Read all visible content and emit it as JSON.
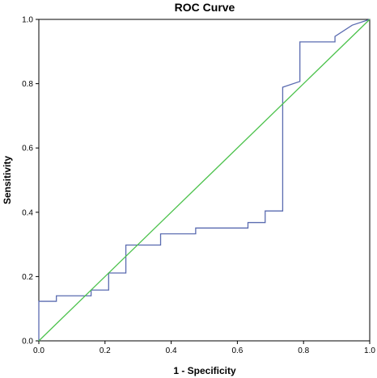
{
  "chart_data": {
    "type": "line",
    "title": "ROC Curve",
    "xlabel": "1 - Specificity",
    "ylabel": "Sensitivity",
    "xlim": [
      0,
      1
    ],
    "ylim": [
      0,
      1
    ],
    "x_ticks": [
      "0.0",
      "0.2",
      "0.4",
      "0.6",
      "0.8",
      "1.0"
    ],
    "y_ticks": [
      "0.0",
      "0.2",
      "0.4",
      "0.6",
      "0.8",
      "1.0"
    ],
    "grid": false,
    "legend": "none",
    "series": [
      {
        "color": "#5a6bb0",
        "style": "step",
        "points": [
          [
            0.0,
            0.0
          ],
          [
            0.0,
            0.123
          ],
          [
            0.053,
            0.123
          ],
          [
            0.053,
            0.14
          ],
          [
            0.158,
            0.14
          ],
          [
            0.158,
            0.158
          ],
          [
            0.211,
            0.158
          ],
          [
            0.211,
            0.211
          ],
          [
            0.263,
            0.211
          ],
          [
            0.263,
            0.298
          ],
          [
            0.368,
            0.298
          ],
          [
            0.368,
            0.333
          ],
          [
            0.474,
            0.333
          ],
          [
            0.474,
            0.351
          ],
          [
            0.632,
            0.351
          ],
          [
            0.632,
            0.368
          ],
          [
            0.684,
            0.368
          ],
          [
            0.684,
            0.404
          ],
          [
            0.737,
            0.404
          ],
          [
            0.737,
            0.789
          ],
          [
            0.789,
            0.807
          ],
          [
            0.789,
            0.93
          ],
          [
            0.895,
            0.93
          ],
          [
            0.895,
            0.947
          ],
          [
            0.947,
            0.982
          ],
          [
            1.0,
            1.0
          ]
        ]
      },
      {
        "color": "#4cc24c",
        "style": "line",
        "points": [
          [
            0,
            0
          ],
          [
            1,
            1
          ]
        ]
      }
    ]
  }
}
